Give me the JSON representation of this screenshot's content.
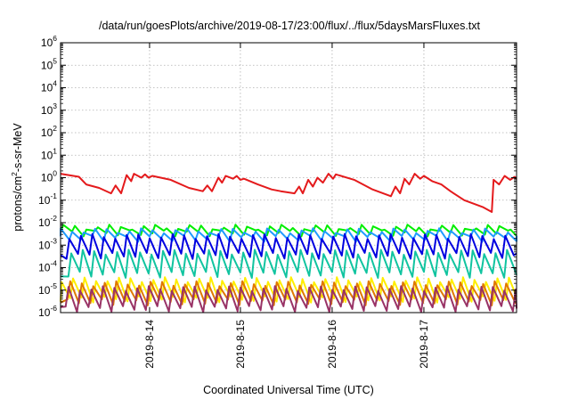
{
  "chart_data": {
    "type": "line",
    "title": "/data/run/goesPlots/archive/2019-08-17/23:00/flux/../flux/5daysMarsFluxes.txt",
    "xlabel": "Coordinated Universal Time (UTC)",
    "ylabel_base": "protons/cm",
    "ylabel_exp": "2",
    "ylabel_rest": "-s-sr-MeV",
    "x_range_days": [
      0,
      4.97
    ],
    "x_ticks": [
      {
        "label": "2019-8-14",
        "day": 0.97
      },
      {
        "label": "2019-8-15",
        "day": 1.96
      },
      {
        "label": "2019-8-16",
        "day": 2.96
      },
      {
        "label": "2019-8-17",
        "day": 3.96
      }
    ],
    "y_scale": "log",
    "y_range_exp": [
      -6,
      6
    ],
    "y_ticks": [
      {
        "base": "10",
        "exp": "6",
        "e": 6
      },
      {
        "base": "10",
        "exp": "5",
        "e": 5
      },
      {
        "base": "10",
        "exp": "4",
        "e": 4
      },
      {
        "base": "10",
        "exp": "3",
        "e": 3
      },
      {
        "base": "10",
        "exp": "2",
        "e": 2
      },
      {
        "base": "10",
        "exp": "1",
        "e": 1
      },
      {
        "base": "10",
        "exp": "0",
        "e": 0
      },
      {
        "base": "10",
        "exp": "-1",
        "e": -1
      },
      {
        "base": "10",
        "exp": "-2",
        "e": -2
      },
      {
        "base": "10",
        "exp": "-3",
        "e": -3
      },
      {
        "base": "10",
        "exp": "-4",
        "e": -4
      },
      {
        "base": "10",
        "exp": "-5",
        "e": -5
      },
      {
        "base": "10",
        "exp": "-6",
        "e": -6
      }
    ],
    "grid": true,
    "legend": "none",
    "series": [
      {
        "color": "#e41a1c",
        "points": [
          [
            0.0,
            1.5
          ],
          [
            0.2,
            1.1
          ],
          [
            0.28,
            0.5
          ],
          [
            0.42,
            0.35
          ],
          [
            0.55,
            0.2
          ],
          [
            0.6,
            0.45
          ],
          [
            0.66,
            0.2
          ],
          [
            0.72,
            1.3
          ],
          [
            0.77,
            0.7
          ],
          [
            0.8,
            1.5
          ],
          [
            0.88,
            1.0
          ],
          [
            0.92,
            1.4
          ],
          [
            0.96,
            1.0
          ],
          [
            1.0,
            1.2
          ],
          [
            1.2,
            0.8
          ],
          [
            1.4,
            0.35
          ],
          [
            1.55,
            0.25
          ],
          [
            1.6,
            0.45
          ],
          [
            1.65,
            0.25
          ],
          [
            1.72,
            1.0
          ],
          [
            1.76,
            0.6
          ],
          [
            1.8,
            1.2
          ],
          [
            1.88,
            0.9
          ],
          [
            1.92,
            1.2
          ],
          [
            1.96,
            0.8
          ],
          [
            2.0,
            0.9
          ],
          [
            2.15,
            0.5
          ],
          [
            2.3,
            0.3
          ],
          [
            2.4,
            0.25
          ],
          [
            2.55,
            0.2
          ],
          [
            2.6,
            0.4
          ],
          [
            2.64,
            0.2
          ],
          [
            2.7,
            0.8
          ],
          [
            2.75,
            0.4
          ],
          [
            2.8,
            1.0
          ],
          [
            2.86,
            0.6
          ],
          [
            2.92,
            1.5
          ],
          [
            2.97,
            0.9
          ],
          [
            3.0,
            1.4
          ],
          [
            3.2,
            0.8
          ],
          [
            3.4,
            0.3
          ],
          [
            3.6,
            0.15
          ],
          [
            3.65,
            0.4
          ],
          [
            3.7,
            0.2
          ],
          [
            3.75,
            0.9
          ],
          [
            3.8,
            0.5
          ],
          [
            3.86,
            1.5
          ],
          [
            3.92,
            0.9
          ],
          [
            3.96,
            1.2
          ],
          [
            4.05,
            0.7
          ],
          [
            4.15,
            0.5
          ],
          [
            4.25,
            0.25
          ],
          [
            4.4,
            0.1
          ],
          [
            4.6,
            0.05
          ],
          [
            4.7,
            0.03
          ],
          [
            4.72,
            0.8
          ],
          [
            4.78,
            0.5
          ],
          [
            4.84,
            1.2
          ],
          [
            4.9,
            0.8
          ],
          [
            4.95,
            1.1
          ],
          [
            4.97,
            0.9
          ]
        ]
      },
      {
        "color": "#00ee00",
        "sawtooth": {
          "period": 0.125,
          "phase": 0.0,
          "high": 0.0065,
          "low": 0.0035
        }
      },
      {
        "color": "#1f9bff",
        "sawtooth": {
          "period": 0.125,
          "phase": 0.03,
          "high": 0.0045,
          "low": 0.002
        }
      },
      {
        "color": "#0000e0",
        "sawtooth": {
          "period": 0.125,
          "phase": 0.06,
          "high": 0.0025,
          "low": 0.00035
        }
      },
      {
        "color": "#11c4a0",
        "sawtooth": {
          "period": 0.125,
          "phase": 0.04,
          "high": 0.0005,
          "low": 5e-05
        }
      },
      {
        "color": "#ffee00",
        "sawtooth": {
          "period": 0.125,
          "phase": 0.02,
          "high": 3e-05,
          "low": 4e-06
        }
      },
      {
        "color": "#e07800",
        "sawtooth": {
          "period": 0.125,
          "phase": 0.05,
          "high": 2e-05,
          "low": 3e-06
        }
      },
      {
        "color": "#993366",
        "sawtooth": {
          "period": 0.125,
          "phase": 0.07,
          "high": 1.2e-05,
          "low": 1.5e-06
        }
      }
    ]
  }
}
